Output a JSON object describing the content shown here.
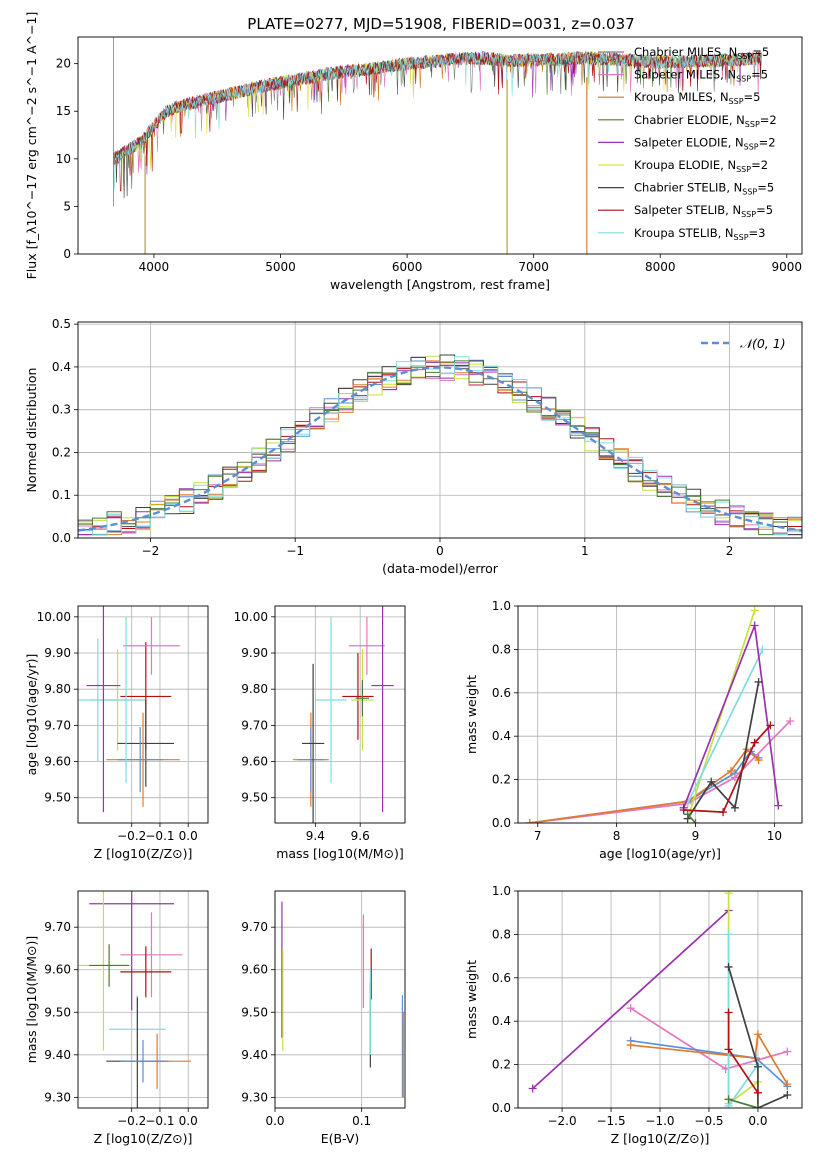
{
  "figure_title": "PLATE=0277, MJD=51908, FIBERID=0031, z=0.037",
  "model_colors": [
    "#808080",
    "#e377c2",
    "#c97a1e",
    "#4d7a3a",
    "#9b30b0",
    "#e0e040",
    "#404040",
    "#b01010",
    "#7fdde0"
  ],
  "chart_data": [
    {
      "id": "spectrum",
      "type": "line",
      "xlabel": "wavelength [Angstrom, rest frame]",
      "ylabel": "Flux [f_λ10^−17 erg cm^−2 s^−1 A^−1]",
      "xlim": [
        3400,
        9120
      ],
      "ylim": [
        0,
        22.8
      ],
      "xticks": [
        4000,
        5000,
        6000,
        7000,
        8000,
        9000
      ],
      "yticks": [
        0,
        5,
        10,
        15,
        20
      ],
      "grid": false,
      "legend": "top-right",
      "legend_entries": [
        {
          "label": "Chabrier MILES, N",
          "sub": "SSP",
          "suffix": "=5",
          "color": "#808080"
        },
        {
          "label": "Salpeter MILES, N",
          "sub": "SSP",
          "suffix": "=5",
          "color": "#e377c2"
        },
        {
          "label": "Kroupa MILES, N",
          "sub": "SSP",
          "suffix": "=5",
          "color": "#c97a1e"
        },
        {
          "label": "Chabrier ELODIE, N",
          "sub": "SSP",
          "suffix": "=2",
          "color": "#4d7a3a"
        },
        {
          "label": "Salpeter ELODIE, N",
          "sub": "SSP",
          "suffix": "=2",
          "color": "#9b30b0"
        },
        {
          "label": "Kroupa ELODIE, N",
          "sub": "SSP",
          "suffix": "=2",
          "color": "#e0e040"
        },
        {
          "label": "Chabrier STELIB, N",
          "sub": "SSP",
          "suffix": "=5",
          "color": "#404040"
        },
        {
          "label": "Salpeter STELIB, N",
          "sub": "SSP",
          "suffix": "=5",
          "color": "#b01010"
        },
        {
          "label": "Kroupa STELIB, N",
          "sub": "SSP",
          "suffix": "=3",
          "color": "#7fdde0"
        }
      ],
      "continuum": {
        "x": [
          3680,
          3800,
          3900,
          4000,
          4100,
          4200,
          4400,
          4600,
          4800,
          5000,
          5200,
          5400,
          5600,
          5800,
          6000,
          6200,
          6400,
          6600,
          6800,
          7000,
          7200,
          7400,
          7600,
          7800,
          8000,
          8200,
          8400,
          8600,
          8800
        ],
        "y": [
          10,
          11,
          11.8,
          13.5,
          15,
          15.5,
          16.2,
          16.8,
          17.5,
          18,
          18.5,
          19,
          19.3,
          19.6,
          20,
          20.2,
          20.5,
          20.6,
          20.3,
          20.4,
          20.5,
          20.6,
          20.5,
          20.3,
          20.2,
          20.2,
          20.3,
          20.4,
          20.6
        ]
      },
      "drops": [
        {
          "x": 3930,
          "y": 0
        },
        {
          "x": 6790,
          "y": 0
        },
        {
          "x": 7420,
          "y": 0
        }
      ]
    },
    {
      "id": "residuals",
      "type": "histogram",
      "xlabel": "(data-model)/error",
      "ylabel": "Normed distribution",
      "xlim": [
        -2.5,
        2.5
      ],
      "ylim": [
        0,
        0.505
      ],
      "xticks": [
        -2,
        -1,
        0,
        1,
        2
      ],
      "yticks": [
        0.0,
        0.1,
        0.2,
        0.3,
        0.4,
        0.5
      ],
      "grid": true,
      "legend": "top-right",
      "legend_label": "𝒩(0, 1)",
      "normal_color": "#5b8fd6",
      "bin_edges_start": -2.5,
      "bin_width": 0.1,
      "series_colors": [
        "#5b8fd6",
        "#e377c2",
        "#b01010",
        "#9b30b0",
        "#c8e040",
        "#404040",
        "#e07a30",
        "#7fdde0",
        "#4d7a3a"
      ]
    },
    {
      "id": "age-vs-Z",
      "type": "errorbar",
      "xlabel": "Z [log10(Z/Z⊙)]",
      "ylabel": "age  [log10(age/yr)]",
      "xlim": [
        -0.39,
        0.07
      ],
      "ylim": [
        9.43,
        10.03
      ],
      "xticks": [
        -0.2,
        -0.1,
        0.0
      ],
      "yticks": [
        9.5,
        9.6,
        9.7,
        9.8,
        9.9,
        10.0
      ],
      "grid": true,
      "points": [
        {
          "x": -0.25,
          "y": 9.77,
          "xerr": 0.1,
          "yerr": 0.14,
          "color": "#c8e040"
        },
        {
          "x": -0.32,
          "y": 9.77,
          "xerr": 0.07,
          "yerr": 0.17,
          "color": "#7fdde0"
        },
        {
          "x": -0.3,
          "y": 9.81,
          "xerr": 0.06,
          "yerr": 0.35,
          "color": "#9b30b0"
        },
        {
          "x": -0.15,
          "y": 9.78,
          "xerr": 0.09,
          "yerr": 0.15,
          "color": "#b01010"
        },
        {
          "x": -0.13,
          "y": 9.92,
          "xerr": 0.1,
          "yerr": 0.08,
          "color": "#e377c2"
        },
        {
          "x": -0.15,
          "y": 9.65,
          "xerr": 0.1,
          "yerr": 0.12,
          "color": "#404040"
        },
        {
          "x": -0.16,
          "y": 9.605,
          "xerr": 0.13,
          "yerr": 0.13,
          "color": "#e07a30"
        },
        {
          "x": -0.17,
          "y": 9.605,
          "xerr": 0.08,
          "yerr": 0.09,
          "color": "#5b8fd6"
        },
        {
          "x": -0.22,
          "y": 9.77,
          "xerr": 0.06,
          "yerr": 0.23,
          "color": "#7fdde0"
        }
      ]
    },
    {
      "id": "age-vs-mass",
      "type": "errorbar",
      "xlabel": "mass [log10(M/M⊙)]",
      "ylabel": "",
      "xlim": [
        9.22,
        9.8
      ],
      "ylim": [
        9.43,
        10.03
      ],
      "xticks": [
        9.4,
        9.6
      ],
      "yticks": [
        9.5,
        9.6,
        9.7,
        9.8,
        9.9,
        10.0
      ],
      "grid": true,
      "points": [
        {
          "x": 9.38,
          "y": 9.605,
          "xerr": 0.08,
          "yerr": 0.13,
          "color": "#e07a30"
        },
        {
          "x": 9.38,
          "y": 9.605,
          "xerr": 0.06,
          "yerr": 0.09,
          "color": "#5b8fd6"
        },
        {
          "x": 9.39,
          "y": 9.65,
          "xerr": 0.05,
          "yerr": 0.22,
          "color": "#404040"
        },
        {
          "x": 9.47,
          "y": 9.77,
          "xerr": 0.07,
          "yerr": 0.23,
          "color": "#7fdde0"
        },
        {
          "x": 9.59,
          "y": 9.78,
          "xerr": 0.07,
          "yerr": 0.12,
          "color": "#b01010"
        },
        {
          "x": 9.63,
          "y": 9.92,
          "xerr": 0.08,
          "yerr": 0.08,
          "color": "#e377c2"
        },
        {
          "x": 9.61,
          "y": 9.77,
          "xerr": 0.05,
          "yerr": 0.14,
          "color": "#c8e040"
        },
        {
          "x": 9.7,
          "y": 9.81,
          "xerr": 0.05,
          "yerr": 0.35,
          "color": "#9b30b0"
        },
        {
          "x": 9.61,
          "y": 9.775,
          "xerr": 0.03,
          "yerr": 0.05,
          "color": "#4d7a3a"
        }
      ]
    },
    {
      "id": "weight-vs-age",
      "type": "line",
      "xlabel": "age  [log10(age/yr)]",
      "ylabel": "mass weight",
      "xlim": [
        6.75,
        10.35
      ],
      "ylim": [
        0,
        1.0
      ],
      "xticks": [
        7,
        8,
        9,
        10
      ],
      "yticks": [
        0.0,
        0.2,
        0.4,
        0.6,
        0.8,
        1.0
      ],
      "grid": true,
      "series": [
        {
          "color": "#5b8fd6",
          "x": [
            6.9,
            8.9,
            9.5,
            9.7,
            9.8
          ],
          "y": [
            0.0,
            0.1,
            0.23,
            0.33,
            0.3
          ]
        },
        {
          "color": "#e377c2",
          "x": [
            6.9,
            8.9,
            9.5,
            10.2
          ],
          "y": [
            0.0,
            0.09,
            0.21,
            0.47
          ]
        },
        {
          "color": "#e07a30",
          "x": [
            6.9,
            8.9,
            9.45,
            9.65,
            9.8
          ],
          "y": [
            0.0,
            0.1,
            0.24,
            0.34,
            0.29
          ]
        },
        {
          "color": "#c8e040",
          "x": [
            8.9,
            9.75
          ],
          "y": [
            0.02,
            0.98
          ]
        },
        {
          "color": "#7fdde0",
          "x": [
            8.9,
            9.85
          ],
          "y": [
            0.09,
            0.8
          ]
        },
        {
          "color": "#9b30b0",
          "x": [
            8.85,
            9.75,
            10.05
          ],
          "y": [
            0.07,
            0.91,
            0.08
          ]
        },
        {
          "color": "#404040",
          "x": [
            8.9,
            9.2,
            9.5,
            9.8
          ],
          "y": [
            0.02,
            0.19,
            0.07,
            0.65
          ]
        },
        {
          "color": "#b01010",
          "x": [
            8.85,
            9.35,
            9.75,
            9.95
          ],
          "y": [
            0.06,
            0.05,
            0.37,
            0.45
          ]
        },
        {
          "color": "#4d7a3a",
          "x": [
            8.9,
            9.0
          ],
          "y": [
            0.04,
            0.0
          ]
        }
      ]
    },
    {
      "id": "mass-vs-Z",
      "type": "errorbar",
      "xlabel": "Z [log10(Z/Z⊙)]",
      "ylabel": "mass [log10(M/M⊙)]",
      "xlim": [
        -0.39,
        0.07
      ],
      "ylim": [
        9.275,
        9.785
      ],
      "xticks": [
        -0.2,
        -0.1,
        0.0
      ],
      "yticks": [
        9.3,
        9.4,
        9.5,
        9.6,
        9.7
      ],
      "grid": true,
      "points": [
        {
          "x": -0.2,
          "y": 9.755,
          "xerr": 0.15,
          "yerr": 0.25,
          "color": "#9b30b0"
        },
        {
          "x": -0.13,
          "y": 9.635,
          "xerr": 0.11,
          "yerr": 0.1,
          "color": "#e377c2"
        },
        {
          "x": -0.3,
          "y": 9.61,
          "xerr": 0.1,
          "yerr": 0.2,
          "color": "#c8e040"
        },
        {
          "x": -0.15,
          "y": 9.595,
          "xerr": 0.09,
          "yerr": 0.06,
          "color": "#b01010"
        },
        {
          "x": -0.18,
          "y": 9.46,
          "xerr": 0.1,
          "yerr": 0.08,
          "color": "#7fdde0"
        },
        {
          "x": -0.18,
          "y": 9.385,
          "xerr": 0.11,
          "yerr": 0.15,
          "color": "#404040"
        },
        {
          "x": -0.11,
          "y": 9.385,
          "xerr": 0.12,
          "yerr": 0.065,
          "color": "#e07a30"
        },
        {
          "x": -0.16,
          "y": 9.385,
          "xerr": 0.08,
          "yerr": 0.05,
          "color": "#5b8fd6"
        },
        {
          "x": -0.28,
          "y": 9.61,
          "xerr": 0.07,
          "yerr": 0.05,
          "color": "#4d7a3a"
        }
      ]
    },
    {
      "id": "mass-vs-ebv",
      "type": "errorbar",
      "xlabel": "E(B-V)",
      "ylabel": "",
      "xlim": [
        0.0,
        0.15
      ],
      "ylim": [
        9.275,
        9.785
      ],
      "xticks": [
        0.0,
        0.1
      ],
      "yticks": [
        9.3,
        9.4,
        9.5,
        9.6,
        9.7
      ],
      "grid": true,
      "points": [
        {
          "x": 0.008,
          "y": 9.6,
          "xerr": 0,
          "yerr": 0.16,
          "color": "#9b30b0"
        },
        {
          "x": 0.009,
          "y": 9.53,
          "xerr": 0,
          "yerr": 0.12,
          "color": "#c8e040"
        },
        {
          "x": 0.102,
          "y": 9.62,
          "xerr": 0,
          "yerr": 0.11,
          "color": "#e377c2"
        },
        {
          "x": 0.111,
          "y": 9.59,
          "xerr": 0,
          "yerr": 0.06,
          "color": "#b01010"
        },
        {
          "x": 0.11,
          "y": 9.47,
          "xerr": 0,
          "yerr": 0.1,
          "color": "#404040"
        },
        {
          "x": 0.11,
          "y": 9.5,
          "xerr": 0,
          "yerr": 0.1,
          "color": "#7fdde0"
        },
        {
          "x": 0.147,
          "y": 9.42,
          "xerr": 0,
          "yerr": 0.12,
          "color": "#5b8fd6"
        },
        {
          "x": 0.148,
          "y": 9.4,
          "xerr": 0,
          "yerr": 0.1,
          "color": "#e07a30"
        }
      ]
    },
    {
      "id": "weight-vs-Z",
      "type": "line",
      "xlabel": "Z [log10(Z/Z⊙)]",
      "ylabel": "mass weight",
      "xlim": [
        -2.45,
        0.45
      ],
      "ylim": [
        0,
        1.0
      ],
      "xticks": [
        -2.0,
        -1.5,
        -1.0,
        -0.5,
        0.0
      ],
      "yticks": [
        0.0,
        0.2,
        0.4,
        0.6,
        0.8,
        1.0
      ],
      "grid": true,
      "series": [
        {
          "color": "#9b30b0",
          "x": [
            -2.3,
            -0.3
          ],
          "y": [
            0.09,
            0.91
          ]
        },
        {
          "color": "#e377c2",
          "x": [
            -1.3,
            -0.33,
            0.3
          ],
          "y": [
            0.46,
            0.18,
            0.26
          ]
        },
        {
          "color": "#5b8fd6",
          "x": [
            -1.3,
            -0.02,
            0.3
          ],
          "y": [
            0.31,
            0.23,
            0.1
          ]
        },
        {
          "color": "#e07a30",
          "x": [
            -1.3,
            -0.03,
            0.0,
            0.3
          ],
          "y": [
            0.29,
            0.23,
            0.34,
            0.11
          ]
        },
        {
          "color": "#c8e040",
          "x": [
            -0.3,
            -0.3,
            0.0
          ],
          "y": [
            0.99,
            0.02,
            0.12
          ]
        },
        {
          "color": "#7fdde0",
          "x": [
            -0.3,
            -0.3,
            0.0
          ],
          "y": [
            0.8,
            0.01,
            0.2
          ]
        },
        {
          "color": "#404040",
          "x": [
            -0.3,
            0.0,
            0.0,
            0.3
          ],
          "y": [
            0.65,
            0.19,
            0.0,
            0.06
          ]
        },
        {
          "color": "#b01010",
          "x": [
            -0.3,
            -0.3,
            0.0
          ],
          "y": [
            0.44,
            0.27,
            0.07
          ]
        },
        {
          "color": "#4d7a3a",
          "x": [
            -0.3,
            0.0
          ],
          "y": [
            0.04,
            0.0
          ]
        }
      ]
    }
  ]
}
